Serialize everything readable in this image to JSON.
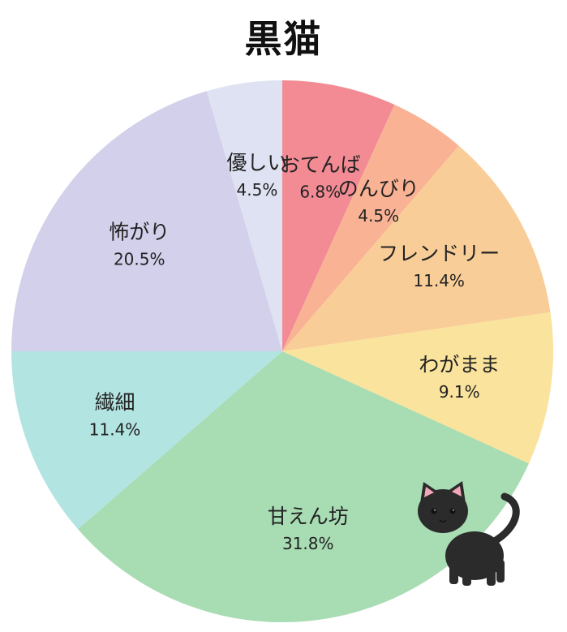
{
  "title": "黒猫",
  "colors": {
    "slices": [
      "#f28b94",
      "#f9b394",
      "#f8cd97",
      "#fae39c",
      "#a8dcb3",
      "#b2e4e2",
      "#d3d0eb",
      "#dfe2f2"
    ]
  },
  "icons": {
    "decoration": "black-cat-icon"
  },
  "chart_data": {
    "type": "pie",
    "title": "黒猫",
    "start_angle_deg": 0,
    "direction": "clockwise",
    "slices": [
      {
        "label": "おてんば",
        "value": 6.8,
        "display": "6.8%"
      },
      {
        "label": "のんびり",
        "value": 4.5,
        "display": "4.5%"
      },
      {
        "label": "フレンドリー",
        "value": 11.4,
        "display": "11.4%"
      },
      {
        "label": "わがまま",
        "value": 9.1,
        "display": "9.1%"
      },
      {
        "label": "甘えん坊",
        "value": 31.8,
        "display": "31.8%"
      },
      {
        "label": "繊細",
        "value": 11.4,
        "display": "11.4%"
      },
      {
        "label": "怖がり",
        "value": 20.5,
        "display": "20.5%"
      },
      {
        "label": "優しい",
        "value": 4.5,
        "display": "4.5%"
      }
    ]
  }
}
